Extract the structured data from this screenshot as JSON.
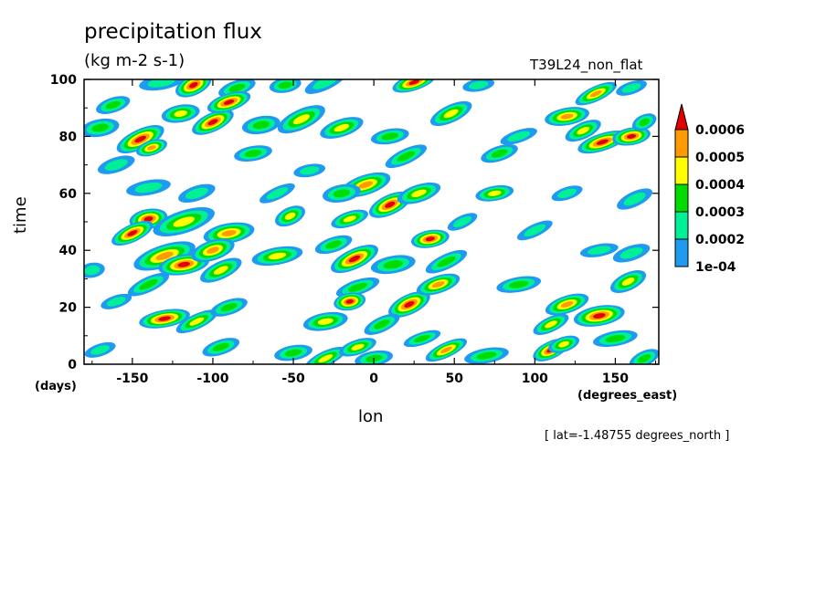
{
  "header": {
    "title": "precipitation flux",
    "units": "(kg m-2 s-1)",
    "run_name": "T39L24_non_flat"
  },
  "axes": {
    "y_label": "time",
    "y_units": "(days)",
    "x_label": "lon",
    "x_units": "(degrees_east)"
  },
  "footer": {
    "latitude_note": "[ lat=-1.48755 degrees_north ]"
  },
  "chart_data": {
    "type": "heatmap",
    "title": "precipitation flux",
    "xlabel": "lon",
    "ylabel": "time",
    "xlim": [
      -180,
      177
    ],
    "ylim": [
      0,
      100
    ],
    "x_ticks": [
      -150,
      -100,
      -50,
      0,
      50,
      100,
      150
    ],
    "x_tick_labels": [
      "-150",
      "-100",
      "-50",
      "0",
      "50",
      "100",
      "150"
    ],
    "y_ticks": [
      0,
      20,
      40,
      60,
      80,
      100
    ],
    "y_tick_labels": [
      "0",
      "20",
      "40",
      "60",
      "80",
      "100"
    ],
    "color_levels": [
      0.0001,
      0.0002,
      0.0003,
      0.0004,
      0.0005,
      0.0006
    ],
    "colorbar_labels": [
      "1e-04",
      "0.0002",
      "0.0003",
      "0.0004",
      "0.0005",
      "0.0006"
    ],
    "colors": [
      "#1e9bf0",
      "#00f096",
      "#00dc00",
      "#ffff00",
      "#ff9a00",
      "#e00000"
    ],
    "background_color": "#ffffff",
    "features": [
      {
        "lon": -162,
        "t": 91,
        "w": 11,
        "h": 1.2,
        "peak": 3
      },
      {
        "lon": -132,
        "t": 99,
        "w": 14,
        "h": 1.2,
        "peak": 2
      },
      {
        "lon": -112,
        "t": 98,
        "w": 12,
        "h": 1.6,
        "peak": 6
      },
      {
        "lon": -85,
        "t": 97,
        "w": 12,
        "h": 1.2,
        "peak": 3
      },
      {
        "lon": -55,
        "t": 98,
        "w": 10,
        "h": 1.2,
        "peak": 3
      },
      {
        "lon": -30,
        "t": 99,
        "w": 14,
        "h": 1.2,
        "peak": 2
      },
      {
        "lon": 25,
        "t": 99,
        "w": 14,
        "h": 1.3,
        "peak": 6
      },
      {
        "lon": 65,
        "t": 98,
        "w": 10,
        "h": 1.0,
        "peak": 2
      },
      {
        "lon": 138,
        "t": 95,
        "w": 14,
        "h": 1.2,
        "peak": 5
      },
      {
        "lon": 160,
        "t": 97,
        "w": 10,
        "h": 1.0,
        "peak": 2
      },
      {
        "lon": -170,
        "t": 83,
        "w": 12,
        "h": 1.4,
        "peak": 3
      },
      {
        "lon": -145,
        "t": 79,
        "w": 16,
        "h": 1.6,
        "peak": 6
      },
      {
        "lon": -138,
        "t": 76,
        "w": 10,
        "h": 1.2,
        "peak": 5
      },
      {
        "lon": -120,
        "t": 88,
        "w": 12,
        "h": 1.4,
        "peak": 4
      },
      {
        "lon": -100,
        "t": 85,
        "w": 14,
        "h": 1.5,
        "peak": 6
      },
      {
        "lon": -90,
        "t": 92,
        "w": 14,
        "h": 1.4,
        "peak": 6
      },
      {
        "lon": -70,
        "t": 84,
        "w": 12,
        "h": 1.4,
        "peak": 3
      },
      {
        "lon": -45,
        "t": 86,
        "w": 16,
        "h": 1.6,
        "peak": 4
      },
      {
        "lon": -20,
        "t": 83,
        "w": 14,
        "h": 1.4,
        "peak": 4
      },
      {
        "lon": 10,
        "t": 80,
        "w": 12,
        "h": 1.2,
        "peak": 3
      },
      {
        "lon": 48,
        "t": 88,
        "w": 14,
        "h": 1.4,
        "peak": 4
      },
      {
        "lon": 78,
        "t": 74,
        "w": 12,
        "h": 1.2,
        "peak": 3
      },
      {
        "lon": 120,
        "t": 87,
        "w": 14,
        "h": 1.4,
        "peak": 5
      },
      {
        "lon": 130,
        "t": 82,
        "w": 12,
        "h": 1.3,
        "peak": 4
      },
      {
        "lon": 142,
        "t": 78,
        "w": 16,
        "h": 1.4,
        "peak": 6
      },
      {
        "lon": 160,
        "t": 80,
        "w": 12,
        "h": 1.4,
        "peak": 6
      },
      {
        "lon": 168,
        "t": 85,
        "w": 8,
        "h": 1.2,
        "peak": 3
      },
      {
        "lon": -160,
        "t": 70,
        "w": 12,
        "h": 1.2,
        "peak": 2
      },
      {
        "lon": -75,
        "t": 74,
        "w": 12,
        "h": 1.2,
        "peak": 3
      },
      {
        "lon": 20,
        "t": 73,
        "w": 14,
        "h": 1.2,
        "peak": 3
      },
      {
        "lon": -5,
        "t": 63,
        "w": 16,
        "h": 1.6,
        "peak": 5
      },
      {
        "lon": -20,
        "t": 60,
        "w": 12,
        "h": 1.4,
        "peak": 3
      },
      {
        "lon": 10,
        "t": 56,
        "w": 14,
        "h": 1.6,
        "peak": 6
      },
      {
        "lon": 28,
        "t": 60,
        "w": 14,
        "h": 1.4,
        "peak": 4
      },
      {
        "lon": 75,
        "t": 60,
        "w": 12,
        "h": 1.2,
        "peak": 4
      },
      {
        "lon": 162,
        "t": 58,
        "w": 12,
        "h": 1.2,
        "peak": 2
      },
      {
        "lon": -110,
        "t": 60,
        "w": 12,
        "h": 1.2,
        "peak": 2
      },
      {
        "lon": -140,
        "t": 51,
        "w": 12,
        "h": 1.6,
        "peak": 6
      },
      {
        "lon": -150,
        "t": 46,
        "w": 14,
        "h": 1.4,
        "peak": 6
      },
      {
        "lon": -118,
        "t": 50,
        "w": 20,
        "h": 1.8,
        "peak": 4
      },
      {
        "lon": -90,
        "t": 46,
        "w": 16,
        "h": 1.6,
        "peak": 5
      },
      {
        "lon": -52,
        "t": 52,
        "w": 10,
        "h": 1.4,
        "peak": 4
      },
      {
        "lon": -15,
        "t": 51,
        "w": 12,
        "h": 1.2,
        "peak": 4
      },
      {
        "lon": 35,
        "t": 44,
        "w": 12,
        "h": 1.4,
        "peak": 6
      },
      {
        "lon": 100,
        "t": 47,
        "w": 12,
        "h": 1.0,
        "peak": 2
      },
      {
        "lon": -130,
        "t": 38,
        "w": 20,
        "h": 1.8,
        "peak": 5
      },
      {
        "lon": -118,
        "t": 35,
        "w": 16,
        "h": 1.6,
        "peak": 6
      },
      {
        "lon": -95,
        "t": 33,
        "w": 14,
        "h": 1.4,
        "peak": 4
      },
      {
        "lon": -100,
        "t": 40,
        "w": 14,
        "h": 1.6,
        "peak": 5
      },
      {
        "lon": -60,
        "t": 38,
        "w": 16,
        "h": 1.4,
        "peak": 4
      },
      {
        "lon": -12,
        "t": 37,
        "w": 16,
        "h": 1.6,
        "peak": 6
      },
      {
        "lon": -25,
        "t": 42,
        "w": 12,
        "h": 1.2,
        "peak": 3
      },
      {
        "lon": 12,
        "t": 35,
        "w": 14,
        "h": 1.4,
        "peak": 3
      },
      {
        "lon": 45,
        "t": 36,
        "w": 14,
        "h": 1.2,
        "peak": 3
      },
      {
        "lon": 160,
        "t": 39,
        "w": 12,
        "h": 1.2,
        "peak": 2
      },
      {
        "lon": -175,
        "t": 33,
        "w": 8,
        "h": 1.2,
        "peak": 2
      },
      {
        "lon": -140,
        "t": 28,
        "w": 14,
        "h": 1.2,
        "peak": 3
      },
      {
        "lon": -10,
        "t": 27,
        "w": 14,
        "h": 1.2,
        "peak": 3
      },
      {
        "lon": -15,
        "t": 22,
        "w": 10,
        "h": 1.4,
        "peak": 6
      },
      {
        "lon": 22,
        "t": 21,
        "w": 14,
        "h": 1.6,
        "peak": 6
      },
      {
        "lon": 40,
        "t": 28,
        "w": 14,
        "h": 1.4,
        "peak": 5
      },
      {
        "lon": 90,
        "t": 28,
        "w": 14,
        "h": 1.2,
        "peak": 3
      },
      {
        "lon": 158,
        "t": 29,
        "w": 12,
        "h": 1.4,
        "peak": 4
      },
      {
        "lon": -160,
        "t": 22,
        "w": 10,
        "h": 1.0,
        "peak": 2
      },
      {
        "lon": -130,
        "t": 16,
        "w": 16,
        "h": 1.4,
        "peak": 6
      },
      {
        "lon": -110,
        "t": 15,
        "w": 14,
        "h": 1.2,
        "peak": 4
      },
      {
        "lon": -90,
        "t": 20,
        "w": 12,
        "h": 1.2,
        "peak": 3
      },
      {
        "lon": -30,
        "t": 15,
        "w": 14,
        "h": 1.4,
        "peak": 4
      },
      {
        "lon": 5,
        "t": 14,
        "w": 12,
        "h": 1.2,
        "peak": 3
      },
      {
        "lon": 120,
        "t": 21,
        "w": 14,
        "h": 1.4,
        "peak": 5
      },
      {
        "lon": 140,
        "t": 17,
        "w": 16,
        "h": 1.6,
        "peak": 6
      },
      {
        "lon": 110,
        "t": 14,
        "w": 12,
        "h": 1.2,
        "peak": 4
      },
      {
        "lon": -95,
        "t": 6,
        "w": 12,
        "h": 1.2,
        "peak": 3
      },
      {
        "lon": -50,
        "t": 4,
        "w": 12,
        "h": 1.2,
        "peak": 3
      },
      {
        "lon": -30,
        "t": 2,
        "w": 14,
        "h": 1.2,
        "peak": 4
      },
      {
        "lon": -10,
        "t": 6,
        "w": 12,
        "h": 1.2,
        "peak": 4
      },
      {
        "lon": 0,
        "t": 2,
        "w": 12,
        "h": 1.2,
        "peak": 3
      },
      {
        "lon": 45,
        "t": 5,
        "w": 14,
        "h": 1.2,
        "peak": 5
      },
      {
        "lon": 30,
        "t": 9,
        "w": 12,
        "h": 1.0,
        "peak": 3
      },
      {
        "lon": 70,
        "t": 3,
        "w": 14,
        "h": 1.2,
        "peak": 3
      },
      {
        "lon": 110,
        "t": 5,
        "w": 12,
        "h": 1.4,
        "peak": 6
      },
      {
        "lon": 118,
        "t": 7,
        "w": 10,
        "h": 1.2,
        "peak": 4
      },
      {
        "lon": 150,
        "t": 9,
        "w": 14,
        "h": 1.2,
        "peak": 3
      },
      {
        "lon": 168,
        "t": 2,
        "w": 10,
        "h": 1.2,
        "peak": 3
      },
      {
        "lon": -170,
        "t": 5,
        "w": 10,
        "h": 1.0,
        "peak": 2
      },
      {
        "lon": -140,
        "t": 62,
        "w": 14,
        "h": 1.2,
        "peak": 2
      },
      {
        "lon": 55,
        "t": 50,
        "w": 10,
        "h": 1.0,
        "peak": 2
      },
      {
        "lon": 120,
        "t": 60,
        "w": 10,
        "h": 1.0,
        "peak": 2
      },
      {
        "lon": 140,
        "t": 40,
        "w": 12,
        "h": 1.0,
        "peak": 2
      },
      {
        "lon": -60,
        "t": 60,
        "w": 12,
        "h": 1.0,
        "peak": 2
      },
      {
        "lon": 90,
        "t": 80,
        "w": 12,
        "h": 1.0,
        "peak": 2
      },
      {
        "lon": -40,
        "t": 68,
        "w": 10,
        "h": 1.0,
        "peak": 2
      }
    ]
  }
}
